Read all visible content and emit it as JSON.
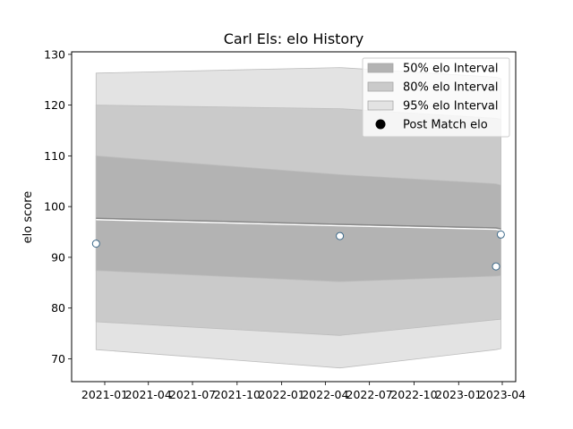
{
  "chart_data": {
    "type": "area",
    "title": "Carl Els: elo History",
    "xlabel": "",
    "ylabel": "elo score",
    "x_ticks": [
      "2021-01",
      "2021-04",
      "2021-07",
      "2021-10",
      "2022-01",
      "2022-04",
      "2022-07",
      "2022-10",
      "2023-01",
      "2023-04"
    ],
    "ylim": [
      65.5,
      130.5
    ],
    "y_ticks": [
      70,
      80,
      90,
      100,
      110,
      120,
      130
    ],
    "grid": false,
    "legend": "top-right",
    "x": [
      "2020-12-14",
      "2022-05-01",
      "2023-03-19",
      "2023-03-29"
    ],
    "series": [
      {
        "name": "95% elo Interval",
        "color": "#e3e3e3",
        "upper": [
          126.3,
          127.4,
          125.5,
          125.2
        ],
        "lower": [
          71.8,
          68.2,
          71.8,
          72.0
        ]
      },
      {
        "name": "80% elo Interval",
        "color": "#cacaca",
        "upper": [
          120.0,
          119.3,
          117.4,
          117.2
        ],
        "lower": [
          77.3,
          74.6,
          77.7,
          77.8
        ]
      },
      {
        "name": "50% elo Interval",
        "color": "#b3b3b3",
        "upper": [
          110.0,
          106.3,
          104.5,
          104.2
        ],
        "lower": [
          87.4,
          85.2,
          86.3,
          86.4
        ]
      },
      {
        "name": "Post Match elo",
        "color": "#000000",
        "marker_fill": "#ffffff",
        "marker_edge": "#3d6a8a",
        "values": [
          92.7,
          94.2,
          88.2,
          94.5
        ]
      }
    ],
    "mean_line": {
      "color": "#888888",
      "values": [
        97.7,
        96.5,
        95.8,
        95.6
      ]
    }
  }
}
